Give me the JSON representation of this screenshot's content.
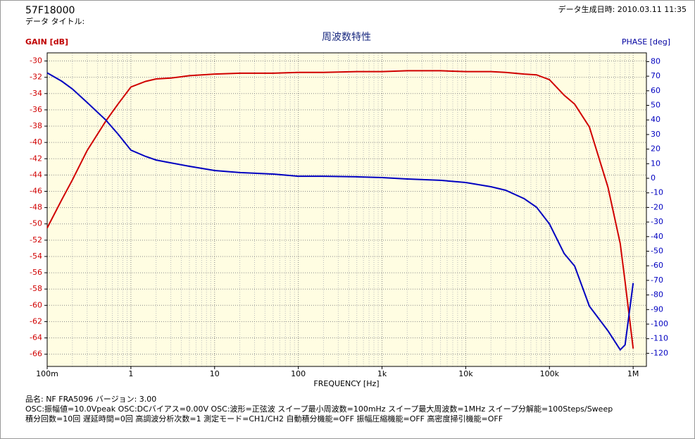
{
  "header": {
    "id": "57F18000",
    "data_title": "データ タイトル:",
    "timestamp": "データ生成日時: 2010.03.11 11:35"
  },
  "chart_data": {
    "type": "line",
    "title": "周波数特性",
    "xlabel": "FREQUENCY [Hz]",
    "ylabel": "GAIN [dB]",
    "y2label": "PHASE [deg]",
    "xscale": "log",
    "grid": true,
    "minor_grid": true,
    "x": [
      0.1,
      0.15,
      0.2,
      0.3,
      0.5,
      0.7,
      1,
      1.5,
      2,
      3,
      5,
      10,
      20,
      50,
      100,
      200,
      500,
      1000,
      2000,
      5000,
      10000,
      20000,
      30000,
      50000,
      70000,
      100000,
      150000,
      200000,
      300000,
      500000,
      700000,
      800000,
      1000000
    ],
    "xlim": [
      0.1,
      1440000
    ],
    "xticks": [
      {
        "value": 0.1,
        "label": "100m"
      },
      1,
      10,
      100,
      {
        "value": 1000,
        "label": "1k"
      },
      {
        "value": 10000,
        "label": "10k"
      },
      {
        "value": 100000,
        "label": "100k"
      },
      {
        "value": 1000000,
        "label": "1M"
      }
    ],
    "ylim": [
      -67.5,
      -29
    ],
    "yticks": [
      -30,
      -32,
      -34,
      -36,
      -38,
      -40,
      -42,
      -44,
      -46,
      -48,
      -50,
      -52,
      -54,
      -56,
      -58,
      -60,
      -62,
      -64,
      -66
    ],
    "y2lim": [
      -129,
      86
    ],
    "y2ticks": [
      80,
      70,
      60,
      50,
      40,
      30,
      20,
      10,
      0,
      -10,
      -20,
      -30,
      -40,
      -50,
      -60,
      -70,
      -80,
      -90,
      -100,
      -110,
      -120
    ],
    "series": [
      {
        "name": "GAIN",
        "color": "#d00000",
        "axis": "y",
        "values": [
          -50.5,
          -47,
          -44.6,
          -41,
          -37.4,
          -35.3,
          -33.2,
          -32.5,
          -32.2,
          -32.1,
          -31.8,
          -31.6,
          -31.5,
          -31.5,
          -31.4,
          -31.4,
          -31.3,
          -31.3,
          -31.2,
          -31.2,
          -31.3,
          -31.3,
          -31.4,
          -31.6,
          -31.7,
          -32.3,
          -34.2,
          -35.3,
          -38.1,
          -45.5,
          -52.4,
          -57.1,
          -65.3
        ]
      },
      {
        "name": "PHASE",
        "color": "#0000c0",
        "axis": "y2",
        "values": [
          72.3,
          66.5,
          61.2,
          52,
          40,
          30.4,
          19.3,
          15,
          12.5,
          10.6,
          8.2,
          5.3,
          3.9,
          2.9,
          1.4,
          1.4,
          1,
          0.5,
          -0.5,
          -1.4,
          -2.9,
          -5.8,
          -8.2,
          -14,
          -19.8,
          -31.3,
          -51.6,
          -60.2,
          -87.7,
          -104.6,
          -117.6,
          -114.2,
          -71.8
        ]
      }
    ]
  },
  "info": [
    "品名: NF FRA5096   バージョン: 3.00",
    "OSC:振幅値=10.0Vpeak  OSC:DCバイアス=0.00V  OSC:波形=正弦波  スイープ最小周波数=100mHz  スイープ最大周波数=1MHz  スイープ分解能=100Steps/Sweep",
    "積分回数=10回  遅延時間=0回  高調波分析次数=1  測定モード=CH1/CH2  自動積分機能=OFF  振幅圧縮機能=OFF  高密度掃引機能=OFF"
  ]
}
